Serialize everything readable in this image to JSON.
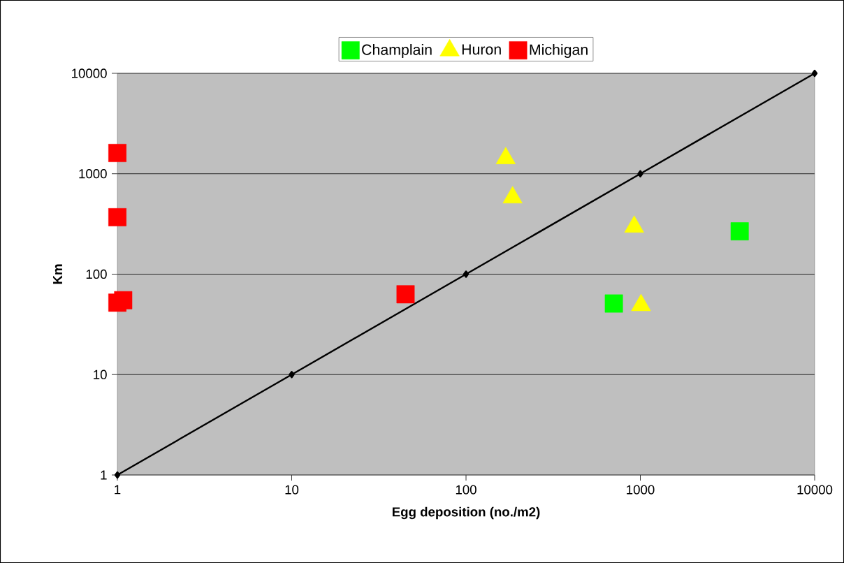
{
  "chart_data": {
    "type": "scatter",
    "xlabel": "Egg deposition (no./m2)",
    "ylabel": "Km",
    "log": "xy",
    "grid": "y",
    "legend": "top",
    "xlim": [
      1,
      10000
    ],
    "ylim": [
      1,
      10000
    ],
    "xticks": [
      1,
      10,
      100,
      1000,
      10000
    ],
    "yticks": [
      1,
      10,
      100,
      1000,
      10000
    ],
    "series": [
      {
        "name": "Champlain",
        "color": "#00ff00",
        "marker": "square",
        "x": [
          705,
          3715
        ],
        "values": [
          51,
          267
        ]
      },
      {
        "name": "Huron",
        "color": "#ffff00",
        "marker": "triangle",
        "x": [
          169,
          185,
          922,
          1009
        ],
        "values": [
          1424,
          580,
          296,
          49
        ]
      },
      {
        "name": "Michigan",
        "color": "#ff0000",
        "marker": "square",
        "x": [
          1,
          1,
          1,
          1.08,
          45
        ],
        "values": [
          1610,
          369,
          52,
          55,
          63
        ]
      },
      {
        "type": "line",
        "color": "#000000",
        "marker": "diamond",
        "line_style": "solid",
        "x": [
          1,
          10,
          100,
          1000,
          10000
        ],
        "values": [
          1,
          10,
          100,
          1000,
          10000
        ]
      }
    ]
  }
}
